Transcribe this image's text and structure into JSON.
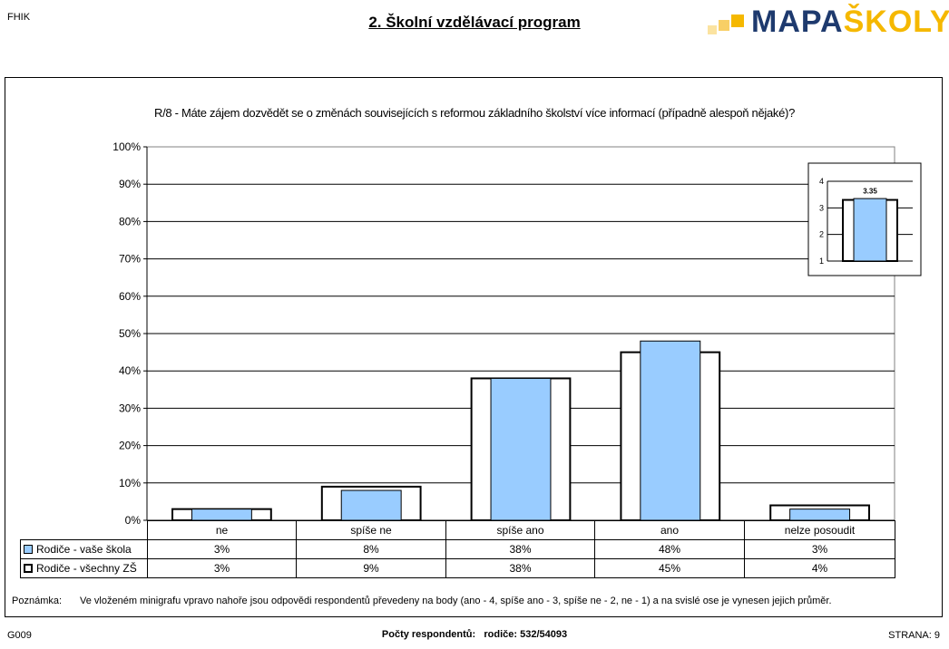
{
  "header": {
    "school_code": "FHIK",
    "title": "2. Školní vzdělávací program",
    "logo": {
      "part1": "MAPA",
      "part2": "ŠKOLY",
      "color_primary": "#1e3a6e",
      "color_accent": "#f5b800"
    }
  },
  "question": "R/8 - Máte zájem dozvědět se o změnách souvisejících s reformou základního školství více informací (případně alespoň nějaké)?",
  "chart_data": [
    {
      "type": "bar",
      "title": "",
      "categories": [
        "ne",
        "spíše ne",
        "spíše ano",
        "ano",
        "nelze posoudit"
      ],
      "series": [
        {
          "name": "Rodiče - vaše škola",
          "values": [
            3,
            8,
            38,
            48,
            3
          ],
          "labels": [
            "3%",
            "8%",
            "38%",
            "48%",
            "3%"
          ],
          "color": "#99ccff"
        },
        {
          "name": "Rodiče - všechny ZŠ",
          "values": [
            3,
            9,
            38,
            45,
            4
          ],
          "labels": [
            "3%",
            "9%",
            "38%",
            "45%",
            "4%"
          ],
          "color": "#ffffff"
        }
      ],
      "y_ticks": [
        "0%",
        "10%",
        "20%",
        "30%",
        "40%",
        "50%",
        "60%",
        "70%",
        "80%",
        "90%",
        "100%"
      ],
      "ylim": [
        0,
        100
      ],
      "grid": true
    },
    {
      "type": "bar",
      "title": "",
      "categories": [
        ""
      ],
      "series": [
        {
          "name": "Rodiče - vaše škola",
          "values": [
            3.35
          ],
          "data_label": "3.35",
          "color": "#99ccff"
        },
        {
          "name": "Rodiče - všechny ZŠ",
          "values": [
            3.3
          ],
          "color": "#ffffff"
        }
      ],
      "y_ticks": [
        "1",
        "2",
        "3",
        "4"
      ],
      "ylim": [
        1,
        4
      ],
      "grid": true
    }
  ],
  "note": {
    "label": "Poznámka:",
    "text": "Ve vloženém minigrafu vpravo nahoře jsou odpovědi respondentů převedeny na body (ano - 4, spíše ano - 3, spíše ne - 2, ne - 1) a na svislé ose je vynesen jejich průměr."
  },
  "footer": {
    "code": "G009",
    "respondents_label": "Počty respondentů:",
    "respondents_value": "rodiče: 532/54093",
    "page": "STRANA: 9"
  }
}
